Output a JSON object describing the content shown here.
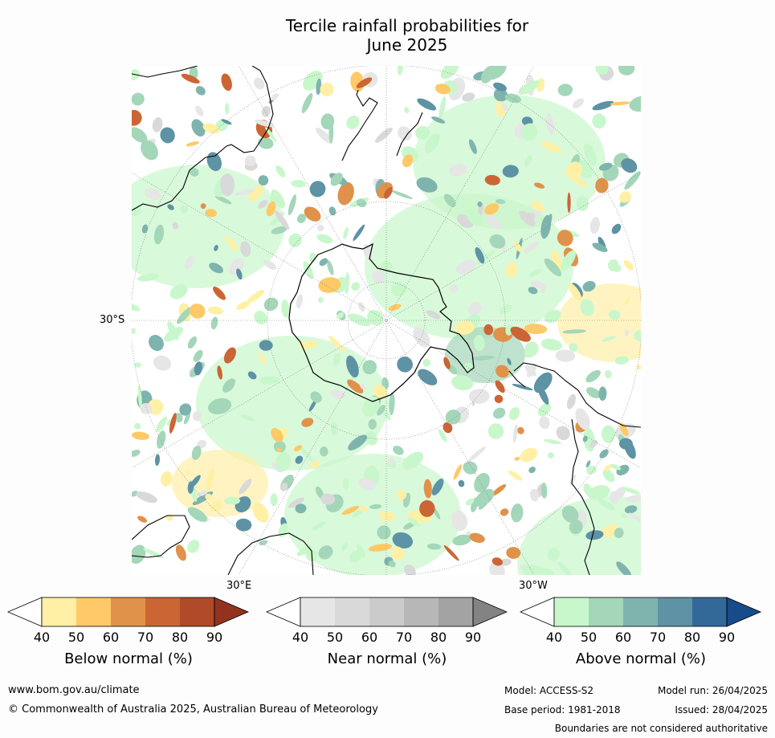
{
  "title_line1": "Tercile rainfall probabilities for",
  "title_line2": "June 2025",
  "axis_labels": {
    "lat": "30°S",
    "lon_east": "30°E",
    "lon_west": "30°W"
  },
  "colorbars": [
    {
      "caption": "Below normal (%)",
      "ticks": [
        "40",
        "50",
        "60",
        "70",
        "80",
        "90"
      ],
      "colors": [
        "#ffffff",
        "#fff0a6",
        "#fec966",
        "#e0924a",
        "#cc6534",
        "#b04a29",
        "#93331f"
      ]
    },
    {
      "caption": "Near normal (%)",
      "ticks": [
        "40",
        "50",
        "60",
        "70",
        "80",
        "90"
      ],
      "colors": [
        "#ffffff",
        "#e6e6e6",
        "#d9d9d9",
        "#cbcbcb",
        "#b7b7b7",
        "#a3a3a3",
        "#838383"
      ]
    },
    {
      "caption": "Above normal (%)",
      "ticks": [
        "40",
        "50",
        "60",
        "70",
        "80",
        "90"
      ],
      "colors": [
        "#ffffff",
        "#c9f7cc",
        "#a4d6b9",
        "#7fb4ae",
        "#5d93a4",
        "#336999",
        "#174b8a"
      ]
    }
  ],
  "footer": {
    "url": "www.bom.gov.au/climate",
    "copyright": "© Commonwealth of Australia 2025, Australian Bureau of Meteorology",
    "model": "Model: ACCESS-S2",
    "base_period": "Base period: 1981-2018",
    "model_run": "Model run: 26/04/2025",
    "issued": "Issued: 28/04/2025",
    "disclaimer": "Boundaries are not considered authoritative"
  }
}
